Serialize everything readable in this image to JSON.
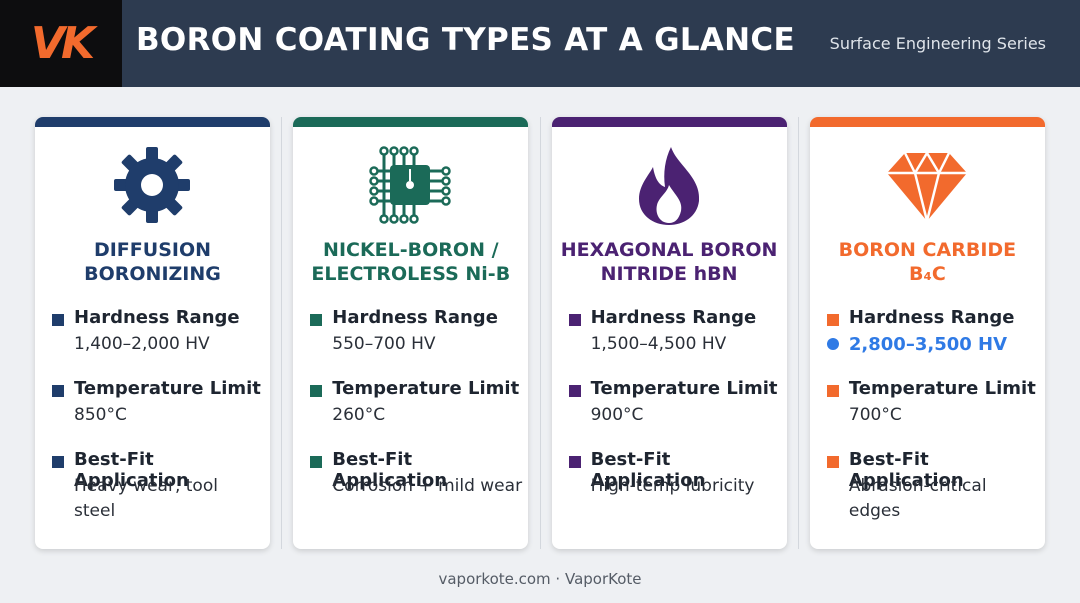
{
  "header": {
    "logo": "VK",
    "title": "BORON COATING TYPES AT A GLANCE",
    "subtitle": "Surface Engineering Series"
  },
  "cards": [
    {
      "color": "#1f3d6b",
      "title": [
        "DIFFUSION",
        "BORONIZING"
      ],
      "items": [
        {
          "label": "Hardness Range",
          "value": "1,400–2,000 HV"
        },
        {
          "label": "Temperature Limit",
          "value": "850°C"
        },
        {
          "label": "Best-Fit Application",
          "value": "Heavy wear, tool steel"
        }
      ]
    },
    {
      "color": "#1b6a58",
      "title": [
        "NICKEL-BORON /",
        "ELECTROLESS Ni-B"
      ],
      "items": [
        {
          "label": "Hardness Range",
          "value": "550–700 HV"
        },
        {
          "label": "Temperature Limit",
          "value": "260°C"
        },
        {
          "label": "Best-Fit Application",
          "value": "Corrosion + mild wear"
        }
      ]
    },
    {
      "color": "#4b2272",
      "title": [
        "HEXAGONAL BORON",
        "NITRIDE hBN"
      ],
      "items": [
        {
          "label": "Hardness Range",
          "value": "1,500–4,500 HV"
        },
        {
          "label": "Temperature Limit",
          "value": "900°C"
        },
        {
          "label": "Best-Fit Application",
          "value": "High-temp lubricity"
        }
      ]
    },
    {
      "color": "#f26a2d",
      "title": [
        "BORON CARBIDE",
        "B₄C"
      ],
      "items": [
        {
          "label": "Hardness Range",
          "value": "2,800–3,500 HV",
          "highlighted": true,
          "highlight_color": "#2f7ae5"
        },
        {
          "label": "Temperature Limit",
          "value": "700°C"
        },
        {
          "label": "Best-Fit Application",
          "value": "Abrasion-critical edges"
        }
      ]
    }
  ],
  "footer": "vaporkote.com · VaporKote"
}
